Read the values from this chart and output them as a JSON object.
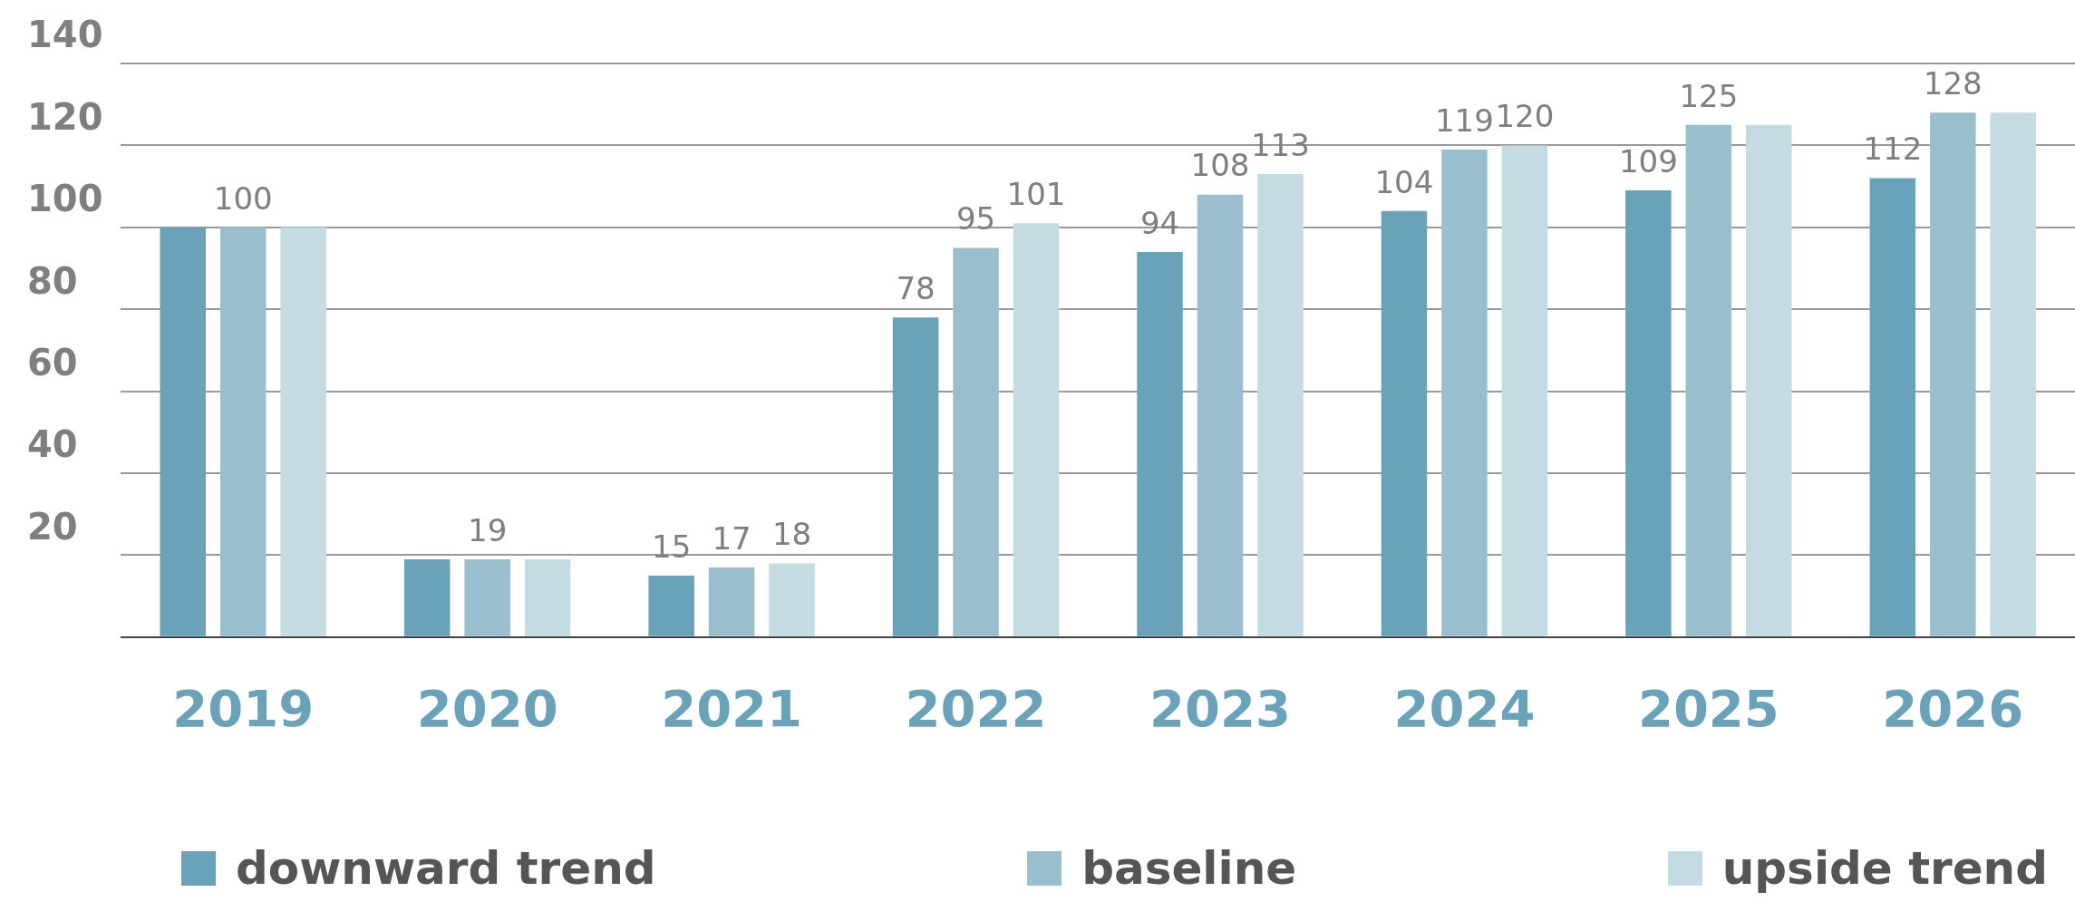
{
  "chart_data": {
    "type": "bar",
    "categories": [
      "2019",
      "2020",
      "2021",
      "2022",
      "2023",
      "2024",
      "2025",
      "2026"
    ],
    "series": [
      {
        "name": "downward trend",
        "color": "#6aa3b9",
        "values": [
          100,
          19,
          15,
          78,
          94,
          104,
          109,
          112
        ],
        "value_labels": [
          null,
          null,
          "15",
          "78",
          "94",
          "104",
          "109",
          "112"
        ]
      },
      {
        "name": "baseline",
        "color": "#99bfcf",
        "values": [
          100,
          19,
          17,
          95,
          108,
          119,
          125,
          128
        ],
        "value_labels": [
          "100",
          "19",
          "17",
          "95",
          "108",
          "119",
          "125",
          "128"
        ]
      },
      {
        "name": "upside trend",
        "color": "#c4dbe3",
        "values": [
          100,
          19,
          18,
          101,
          113,
          120,
          125,
          128
        ],
        "value_labels": [
          null,
          null,
          "18",
          "101",
          "113",
          "120",
          null,
          null
        ]
      }
    ],
    "ylim": [
      0,
      140
    ],
    "yticks": [
      {
        "value": 0,
        "label": null
      },
      20,
      40,
      60,
      80,
      100,
      120,
      140
    ],
    "grid": "y",
    "legend": "bottom"
  }
}
